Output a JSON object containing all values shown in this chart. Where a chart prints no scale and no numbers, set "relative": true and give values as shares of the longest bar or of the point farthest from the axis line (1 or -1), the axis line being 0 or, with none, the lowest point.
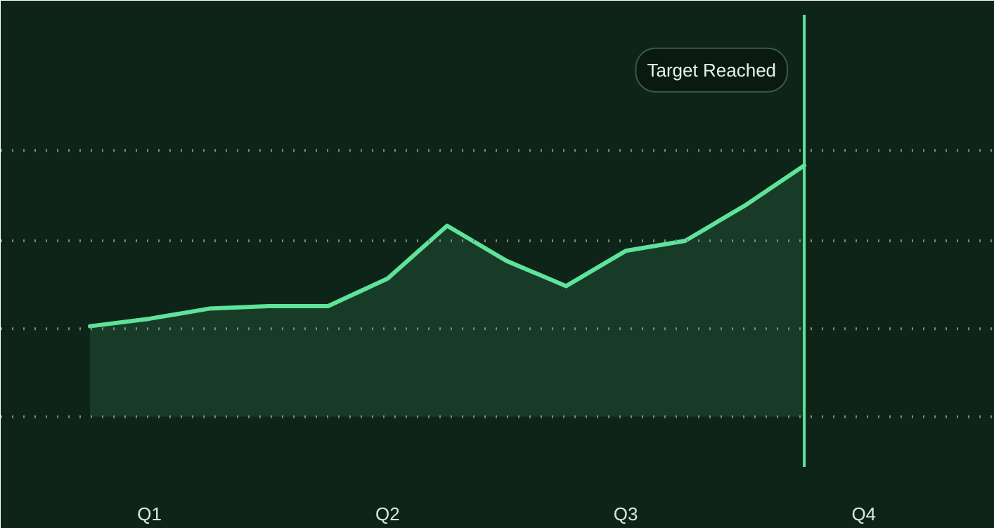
{
  "chart_data": {
    "type": "area",
    "relative": true,
    "categories": [
      null,
      "Q1",
      null,
      null,
      null,
      "Q2",
      null,
      null,
      null,
      "Q3",
      null,
      null,
      null,
      "Q4"
    ],
    "series": [
      {
        "color": "#5ee39a",
        "values": [
          0.36,
          0.39,
          0.43,
          0.44,
          0.44,
          0.55,
          0.76,
          0.62,
          0.52,
          0.66,
          0.7,
          0.84,
          1.0,
          null
        ]
      }
    ],
    "tick_labels": "x",
    "ref_lines": [
      {
        "axis": "x",
        "label": "Target Reached",
        "color": "#5ee39a"
      },
      {
        "axis": "y",
        "value": 0,
        "color": "#6f8f7a",
        "line_style": "dotted"
      },
      {
        "axis": "y",
        "value": 0.35,
        "color": "#6f8f7a",
        "line_style": "dotted"
      },
      {
        "axis": "y",
        "value": 0.7,
        "color": "#6f8f7a",
        "line_style": "dotted"
      },
      {
        "axis": "y",
        "value": 1.06,
        "color": "#6f8f7a",
        "line_style": "dotted"
      }
    ]
  }
}
